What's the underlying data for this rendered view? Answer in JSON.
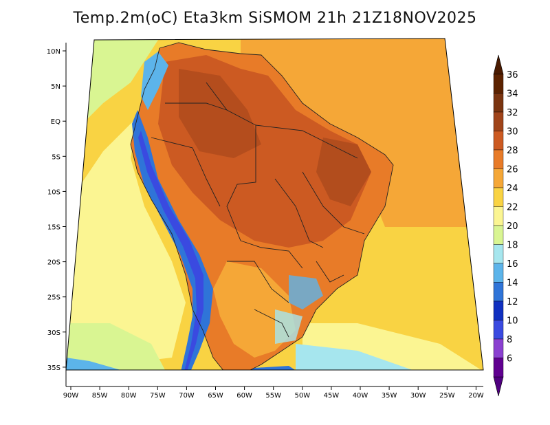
{
  "title": "Temp.2m(oC) Eta3km SiSMOM 21h 21Z18NOV2025",
  "lon_ticks": [
    "90W",
    "85W",
    "80W",
    "75W",
    "70W",
    "65W",
    "60W",
    "55W",
    "50W",
    "45W",
    "40W",
    "35W",
    "30W",
    "25W",
    "20W"
  ],
  "lat_ticks": [
    "10N",
    "5N",
    "EQ",
    "5S",
    "10S",
    "15S",
    "20S",
    "25S",
    "30S",
    "35S"
  ],
  "colorbar": {
    "labels": [
      "36",
      "34",
      "32",
      "30",
      "28",
      "26",
      "24",
      "22",
      "20",
      "18",
      "16",
      "14",
      "12",
      "10",
      "8",
      "6"
    ],
    "colors": [
      "#5c2200",
      "#7a3410",
      "#a0441a",
      "#cc5a22",
      "#e87b28",
      "#f5a737",
      "#f9d343",
      "#fbf592",
      "#d9f592",
      "#a6e6ee",
      "#5cb4ea",
      "#2f74d8",
      "#1030c0",
      "#3a4ae0",
      "#8a40d0",
      "#600090"
    ],
    "top_arrow_color": "#4a1a00",
    "bottom_arrow_color": "#500080"
  },
  "field_colors": {
    "ocean_warm": "#f9d343",
    "ocean_tropical": "#f5a737",
    "ocean_cool": "#fbf592",
    "ocean_cold": "#d9f592",
    "ocean_polar": "#a6e6ee",
    "land_hot": "#e87b28",
    "land_hotter": "#cc5a22",
    "land_hottest": "#a0441a",
    "andes_cold": "#2f74d8",
    "andes_coldest": "#3a4ae0"
  }
}
